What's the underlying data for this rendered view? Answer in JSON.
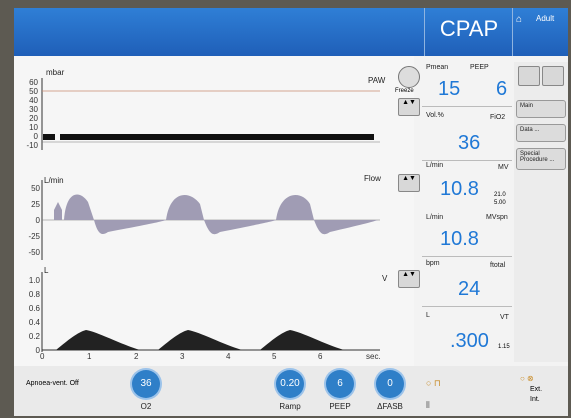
{
  "header": {
    "mode": "CPAP",
    "patient": "Adult"
  },
  "waveforms": {
    "paw": {
      "title": "PAW",
      "unit": "mbar",
      "ticks": [
        "60",
        "50",
        "40",
        "30",
        "20",
        "10",
        "0",
        "-10"
      ]
    },
    "flow": {
      "title": "Flow",
      "unit": "L/min",
      "ticks": [
        "50",
        "25",
        "0",
        "-25",
        "-50"
      ]
    },
    "volume": {
      "title": "V",
      "unit": "L",
      "ticks": [
        "1.0",
        "0.8",
        "0.6",
        "0.4",
        "0.2",
        "0"
      ]
    },
    "time_axis": {
      "ticks": [
        "0",
        "1",
        "2",
        "3",
        "4",
        "5",
        "6"
      ],
      "unit": "sec."
    },
    "freeze_label": "Freeze"
  },
  "measurements": {
    "pmean": {
      "label": "Pmean",
      "value": "15"
    },
    "peep": {
      "label": "PEEP",
      "value": "6"
    },
    "fio2": {
      "unit": "Vol.%",
      "label": "FiO2",
      "value": "36"
    },
    "mv": {
      "unit": "L/min",
      "label": "MV",
      "value": "10.8",
      "upper": "21.0",
      "lower": "5.00"
    },
    "mvspn": {
      "unit": "L/min",
      "label": "MVspn",
      "value": "10.8"
    },
    "ftotal": {
      "unit": "bpm",
      "label": "ftotal",
      "value": "24"
    },
    "vt": {
      "unit": "L",
      "label": "VT",
      "value": ".300",
      "limit": "1.15"
    }
  },
  "sidebar": {
    "main": "Main",
    "data": "Data ...",
    "special": "Special Procedure ..."
  },
  "bottom": {
    "apnoea": "Apnoea-vent. Off",
    "o2": {
      "label": "O2",
      "value": "36"
    },
    "ramp": {
      "label": "Ramp",
      "value": "0.20"
    },
    "peep": {
      "label": "PEEP",
      "value": "6"
    },
    "fasb": {
      "label": "ΔFASB",
      "value": "0"
    },
    "ext": "Ext.",
    "int": "Int."
  },
  "colors": {
    "accent": "#1f78d6",
    "header": "#2a6fcc",
    "wave": "#222222",
    "flow_fill": "#a09cb4"
  }
}
